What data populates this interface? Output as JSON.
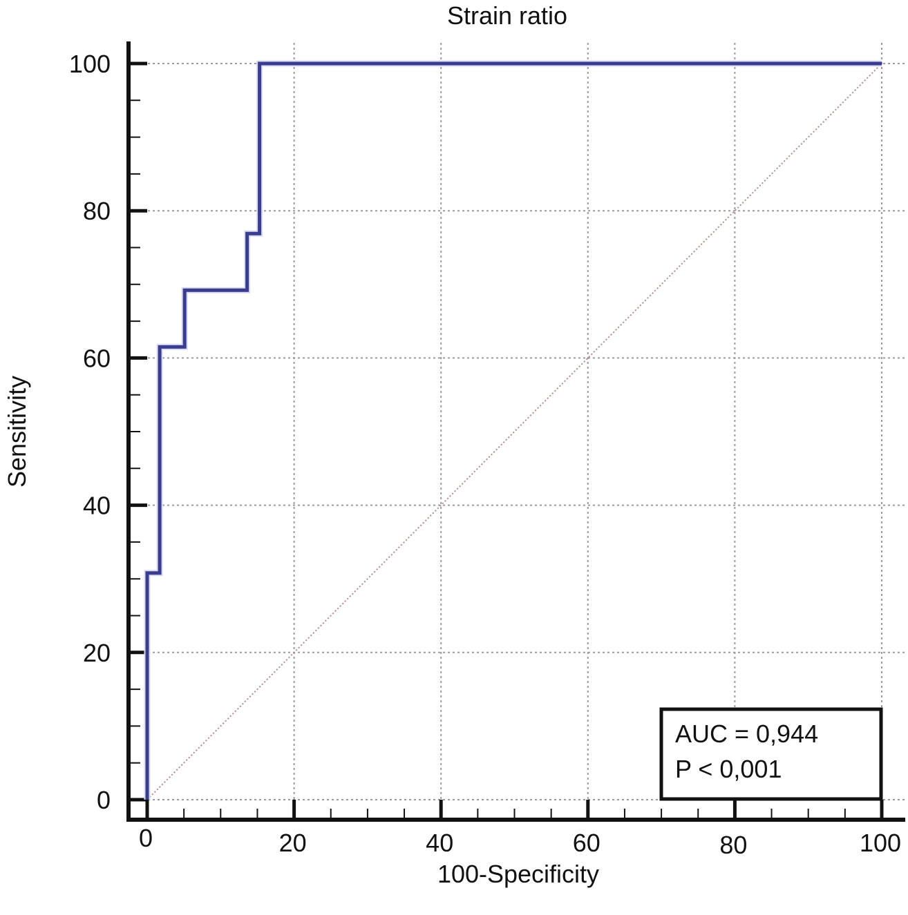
{
  "chart_data": {
    "type": "line",
    "title": "Strain ratio",
    "xlabel": "100-Specificity",
    "ylabel": "Sensitivity",
    "xlim": [
      0,
      100
    ],
    "ylim": [
      0,
      100
    ],
    "xticks": [
      0,
      20,
      40,
      60,
      80,
      100
    ],
    "yticks": [
      0,
      20,
      40,
      60,
      80,
      100
    ],
    "grid": true,
    "series": [
      {
        "values": [
          [
            0,
            0
          ],
          [
            0,
            30.8
          ],
          [
            1.7,
            30.8
          ],
          [
            1.7,
            61.5
          ],
          [
            5.1,
            61.5
          ],
          [
            5.1,
            69.2
          ],
          [
            13.6,
            69.2
          ],
          [
            13.6,
            76.9
          ],
          [
            15.3,
            76.9
          ],
          [
            15.3,
            100
          ],
          [
            100,
            100
          ]
        ],
        "color": "#3a3d8f"
      },
      {
        "values": [
          [
            0,
            0
          ],
          [
            100,
            100
          ]
        ],
        "color": "#b08a8a",
        "style": "dotted"
      }
    ],
    "annotation": {
      "lines": [
        "AUC = 0,944",
        "P < 0,001"
      ],
      "position": "bottom-right"
    }
  }
}
